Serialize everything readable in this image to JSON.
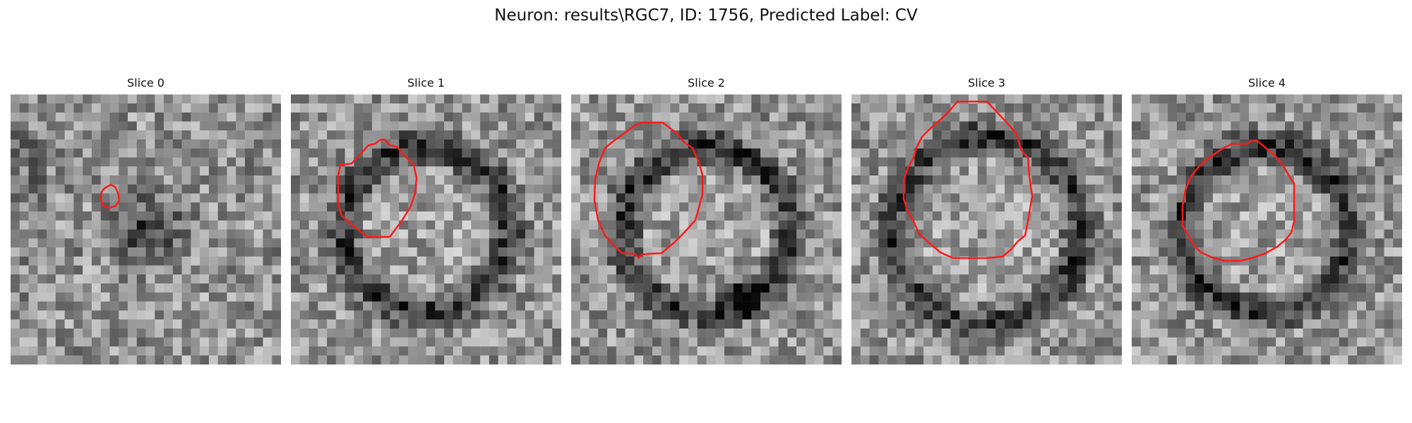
{
  "figure": {
    "title": "Neuron: results\\RGC7, ID: 1756, Predicted Label: CV"
  },
  "panels": [
    {
      "title": "Slice 0",
      "seed": 11,
      "dark": "center-small"
    },
    {
      "title": "Slice 1",
      "seed": 23,
      "dark": "ring"
    },
    {
      "title": "Slice 2",
      "seed": 37,
      "dark": "ring"
    },
    {
      "title": "Slice 3",
      "seed": 41,
      "dark": "ring"
    },
    {
      "title": "Slice 4",
      "seed": 59,
      "dark": "ring"
    }
  ],
  "colors": {
    "contour": "#ff1a1a"
  }
}
